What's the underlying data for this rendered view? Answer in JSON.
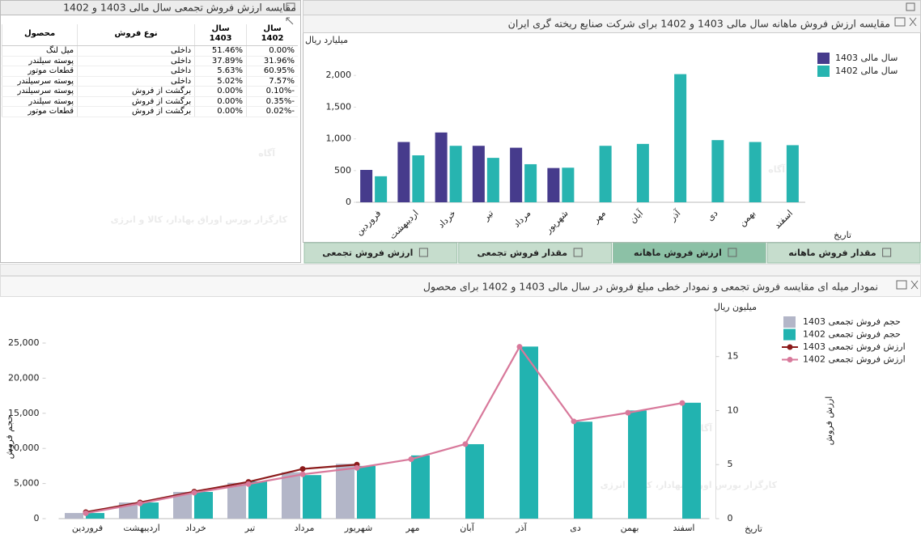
{
  "watermark": {
    "logo": "آگاه",
    "text": "کارگزار بورس اوراق بهادار، کالا و انرژی"
  },
  "table_panel": {
    "title": "مقایسه ارزش فروش تجمعی سال مالی 1403 و 1402",
    "headers": [
      "محصول",
      "نوع فروش",
      "سال 1403",
      "سال 1402"
    ],
    "rows": [
      [
        "میل لنگ",
        "داخلی",
        "51.46%",
        "0.00%"
      ],
      [
        "پوسته سیلندر",
        "داخلی",
        "37.89%",
        "31.96%"
      ],
      [
        "قطعات موتور",
        "داخلی",
        "5.63%",
        "60.95%"
      ],
      [
        "پوسته سرسیلندر",
        "داخلی",
        "5.02%",
        "7.57%"
      ],
      [
        "پوسته سرسیلندر",
        "برگشت از فروش",
        "0.00%",
        "-0.10%"
      ],
      [
        "پوسته سیلندر",
        "برگشت از فروش",
        "0.00%",
        "-0.35%"
      ],
      [
        "قطعات موتور",
        "برگشت از فروش",
        "0.00%",
        "-0.02%"
      ]
    ]
  },
  "tabs": [
    {
      "label": "مقدار فروش ماهانه",
      "active": false
    },
    {
      "label": "ارزش فروش ماهانه",
      "active": true
    },
    {
      "label": "مقدار فروش تجمعی",
      "active": false
    },
    {
      "label": "ارزش فروش تجمعی",
      "active": false
    }
  ],
  "chart_data": [
    {
      "type": "bar",
      "title": "مقایسه ارزش فروش ماهانه سال مالی 1403 و 1402 برای شرکت صنایع ریخته گری ایران",
      "y_label": "میلیارد ریال",
      "x_label": "تاریخ",
      "categories": [
        "فروردین",
        "اردیبهشت",
        "خرداد",
        "تیر",
        "مرداد",
        "شهریور",
        "مهر",
        "آبان",
        "آذر",
        "دی",
        "بهمن",
        "اسفند"
      ],
      "series": [
        {
          "name": "سال مالی 1403",
          "color": "#463b8c",
          "values": [
            510,
            950,
            1100,
            890,
            860,
            540,
            null,
            null,
            null,
            null,
            null,
            null
          ]
        },
        {
          "name": "سال مالی 1402",
          "color": "#27b4b0",
          "values": [
            410,
            740,
            890,
            700,
            600,
            545,
            890,
            920,
            2020,
            980,
            950,
            900
          ]
        }
      ],
      "ylim": [
        0,
        2500
      ],
      "yticks": [
        0,
        500,
        {
          "value": 1000,
          "label": "1,000"
        },
        {
          "value": 1500,
          "label": "1,500"
        },
        {
          "value": 2000,
          "label": "2,000"
        }
      ],
      "grid": false,
      "legend": "right"
    },
    {
      "type": "combo",
      "title": "نمودار میله ای مقایسه فروش تجمعی و نمودار خطی مبلغ فروش در سال مالی 1403 و 1402 برای محصول",
      "y_label": "حجم فروش",
      "y2_label": "ارزش فروش",
      "y2_unit": "میلیون ریال",
      "x_label": "تاریخ",
      "categories": [
        "فروردین",
        "اردیبهشت",
        "خرداد",
        "تیر",
        "مرداد",
        "شهریور",
        "مهر",
        "آبان",
        "آذر",
        "دی",
        "بهمن",
        "اسفند"
      ],
      "series": [
        {
          "name": "حجم فروش تجمعی 1403",
          "type": "bar",
          "color": "#b3b6c8",
          "values": [
            800,
            2300,
            3800,
            5100,
            6600,
            7800,
            null,
            null,
            null,
            null,
            null,
            null
          ]
        },
        {
          "name": "حجم فروش تجمعی 1402",
          "type": "bar",
          "color": "#22b3b0",
          "values": [
            800,
            2300,
            3800,
            5300,
            6200,
            7500,
            9000,
            10600,
            24500,
            13800,
            15400,
            16500
          ]
        },
        {
          "name": "ارزش فروش تجمعی 1403",
          "type": "line",
          "axis": "y2",
          "color": "#8b1a1a",
          "values": [
            0.6,
            1.5,
            2.5,
            3.4,
            4.6,
            5.0,
            null,
            null,
            null,
            null,
            null,
            null
          ]
        },
        {
          "name": "ارزش فروش تجمعی 1402",
          "type": "line",
          "axis": "y2",
          "color": "#d8799b",
          "values": [
            0.5,
            1.4,
            2.4,
            3.2,
            4.1,
            4.7,
            5.5,
            6.9,
            15.9,
            9.0,
            9.8,
            10.7
          ]
        }
      ],
      "ylim": [
        0,
        30000
      ],
      "yticks": [
        0,
        {
          "value": 5000,
          "label": "5,000"
        },
        {
          "value": 10000,
          "label": "10,000"
        },
        {
          "value": 15000,
          "label": "15,000"
        },
        {
          "value": 20000,
          "label": "20,000"
        },
        {
          "value": 25000,
          "label": "25,000"
        }
      ],
      "y2lim": [
        0,
        19.5
      ],
      "y2ticks": [
        0,
        5,
        10,
        15
      ],
      "grid": false,
      "legend": "right"
    }
  ]
}
